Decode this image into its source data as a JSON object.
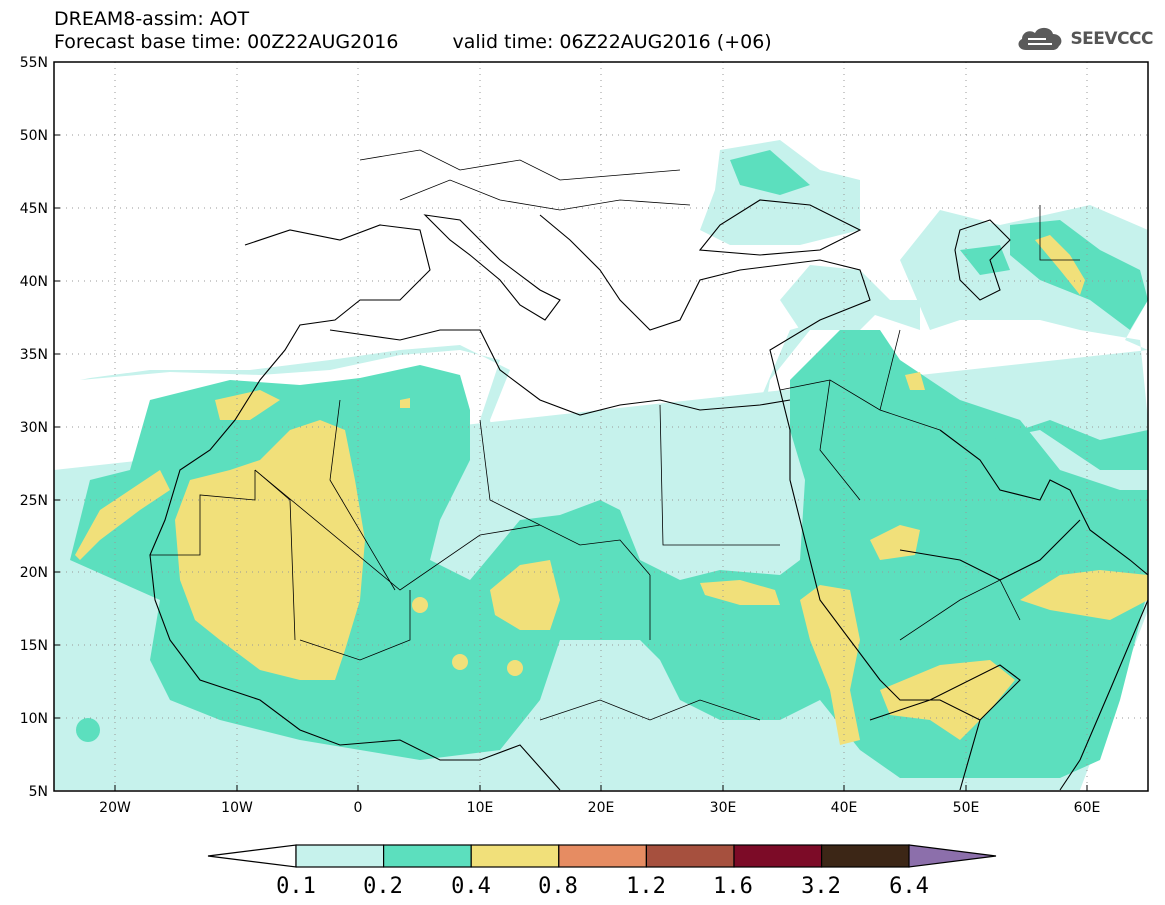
{
  "header": {
    "title": "DREAM8-assim: AOT",
    "base_time": "Forecast base time: 00Z22AUG2016",
    "valid_time": "valid time: 06Z22AUG2016 (+06)"
  },
  "logo": {
    "text": "SEEVCCC",
    "icon": "cloud-icon"
  },
  "map": {
    "lat_labels": [
      "55N",
      "50N",
      "45N",
      "40N",
      "35N",
      "30N",
      "25N",
      "20N",
      "15N",
      "10N",
      "5N"
    ],
    "lon_labels": [
      "20W",
      "10W",
      "0",
      "10E",
      "20E",
      "30E",
      "40E",
      "50E",
      "60E"
    ],
    "lon_range": [
      -25,
      65
    ],
    "lat_range": [
      5,
      55
    ]
  },
  "legend": {
    "levels": [
      "0.1",
      "0.2",
      "0.4",
      "0.8",
      "1.2",
      "1.6",
      "3.2",
      "6.4"
    ],
    "colors": [
      "#c6f2ec",
      "#5cdfbe",
      "#f1e07a",
      "#e68c62",
      "#a6503e",
      "#7c0b27",
      "#3c2616",
      "#8c6fab"
    ]
  }
}
